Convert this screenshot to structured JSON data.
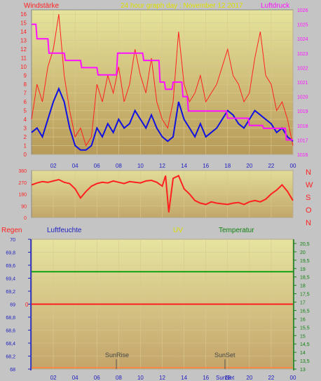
{
  "header": {
    "left_label": "Windstärke",
    "title": "24 hour graph day : November 12 2017",
    "right_label": "Luftdruck"
  },
  "labels": {
    "rain": "Regen",
    "humidity": "Luftfeuchte",
    "uv": "UV",
    "temperature": "Temperatur",
    "sunrise": "SunRise",
    "sunset": "SunSet",
    "sunset_short": "SunSet",
    "uv_zero": "0",
    "compass": [
      "N",
      "W",
      "S",
      "O",
      "N"
    ]
  },
  "colors": {
    "wind": "#ff2020",
    "wind_avg": "#1010e0",
    "pressure": "#ff10ff",
    "direction": "#ff2020",
    "humidity": "#10a010",
    "uv": "#ff2020",
    "title": "#e0e000",
    "left_axis": "#ff2020",
    "right_axis_top": "#ff10ff",
    "temp_axis": "#108010",
    "rain_axis": "#2020c0",
    "header_text_left": "#ff2020"
  },
  "chart_data": [
    {
      "type": "line",
      "name": "wind-pressure",
      "x_ticks": [
        "02",
        "04",
        "06",
        "08",
        "10",
        "12",
        "14",
        "16",
        "18",
        "20",
        "22",
        "00"
      ],
      "left_ticks": [
        "0",
        "1",
        "2",
        "3",
        "4",
        "5",
        "6",
        "7",
        "8",
        "9",
        "10",
        "11",
        "12",
        "13",
        "14",
        "15",
        "16"
      ],
      "right_ticks": [
        "1016",
        "1017",
        "1018",
        "1019",
        "1020",
        "1021",
        "1022",
        "1023",
        "1024",
        "1025",
        "1026"
      ],
      "ylim_left": [
        0,
        16.5
      ],
      "ylim_right": [
        1016,
        1026
      ],
      "series": [
        {
          "key": "gust",
          "x": [
            0,
            0.5,
            1,
            1.5,
            2,
            2.5,
            3,
            3.5,
            4,
            4.5,
            5,
            5.5,
            6,
            6.5,
            7,
            7.5,
            8,
            8.5,
            9,
            9.5,
            10,
            10.5,
            11,
            11.5,
            12,
            12.5,
            13,
            13.5,
            14,
            14.5,
            15,
            15.5,
            16,
            16.5,
            17,
            17.5,
            18,
            18.5,
            19,
            19.5,
            20,
            20.5,
            21,
            21.5,
            22,
            22.5,
            23,
            23.5,
            24
          ],
          "y": [
            4,
            8,
            6,
            10,
            12,
            16,
            9,
            5,
            2,
            3,
            1,
            2,
            8,
            6,
            9,
            7,
            10,
            6,
            8,
            12,
            9,
            7,
            11,
            6,
            4,
            3,
            6,
            14,
            8,
            6,
            7,
            9,
            6,
            7,
            8,
            10,
            12,
            9,
            8,
            6,
            7,
            11,
            14,
            9,
            8,
            5,
            6,
            4,
            1
          ]
        },
        {
          "key": "avg",
          "x": [
            0,
            0.5,
            1,
            1.5,
            2,
            2.5,
            3,
            3.5,
            4,
            4.5,
            5,
            5.5,
            6,
            6.5,
            7,
            7.5,
            8,
            8.5,
            9,
            9.5,
            10,
            10.5,
            11,
            11.5,
            12,
            12.5,
            13,
            13.5,
            14,
            14.5,
            15,
            15.5,
            16,
            16.5,
            17,
            17.5,
            18,
            18.5,
            19,
            19.5,
            20,
            20.5,
            21,
            21.5,
            22,
            22.5,
            23,
            23.5,
            24
          ],
          "y": [
            2.5,
            3,
            2,
            4,
            6,
            7.5,
            6,
            3,
            1,
            0.5,
            0.5,
            1,
            3,
            2,
            3.5,
            2.5,
            4,
            3,
            3.5,
            5,
            4,
            3,
            4.5,
            3,
            2,
            1.5,
            2,
            6,
            4,
            3,
            2,
            3.5,
            2,
            2.5,
            3,
            4,
            5,
            4.5,
            3.5,
            3,
            4,
            5,
            4.5,
            4,
            3.5,
            2.5,
            3,
            2,
            1.5
          ]
        },
        {
          "key": "pressure",
          "x": [
            0,
            0.4,
            0.5,
            1.5,
            1.6,
            3,
            3.1,
            4.5,
            4.6,
            6,
            6.1,
            7.8,
            7.9,
            10.2,
            10.3,
            11.7,
            11.8,
            12.2,
            12.3,
            12.9,
            13,
            13.8,
            13.9,
            14.3,
            14.4,
            17.9,
            18,
            19.9,
            20,
            21.2,
            21.3,
            23.3,
            23.4,
            24
          ],
          "y": [
            1025,
            1025,
            1024,
            1024,
            1023,
            1023,
            1022.5,
            1022.5,
            1022,
            1022,
            1021.5,
            1021.5,
            1023,
            1023,
            1022.5,
            1022.5,
            1021,
            1021,
            1020.5,
            1020.5,
            1021,
            1021,
            1020,
            1020,
            1019,
            1019,
            1018.5,
            1018.5,
            1018,
            1018,
            1017.8,
            1017.8,
            1017,
            1017
          ]
        }
      ]
    },
    {
      "type": "line",
      "name": "wind-direction",
      "y_ticks": [
        "360",
        "270",
        "180",
        "90",
        "0"
      ],
      "ylim": [
        0,
        360
      ],
      "x": [
        0,
        0.5,
        1,
        1.5,
        2,
        2.5,
        3,
        3.5,
        4,
        4.5,
        5,
        5.5,
        6,
        6.5,
        7,
        7.5,
        8,
        8.5,
        9,
        9.5,
        10,
        10.5,
        11,
        11.5,
        12,
        12.3,
        12.6,
        13,
        13.5,
        14,
        14.5,
        15,
        15.5,
        16,
        16.5,
        17,
        17.5,
        18,
        18.5,
        19,
        19.5,
        20,
        20.5,
        21,
        21.5,
        22,
        22.5,
        23,
        23.5,
        24
      ],
      "y": [
        250,
        265,
        275,
        270,
        280,
        290,
        270,
        260,
        220,
        150,
        200,
        240,
        260,
        270,
        265,
        280,
        270,
        260,
        275,
        270,
        265,
        280,
        285,
        270,
        240,
        320,
        40,
        300,
        320,
        220,
        180,
        130,
        110,
        100,
        120,
        110,
        105,
        100,
        110,
        115,
        100,
        120,
        130,
        120,
        140,
        180,
        210,
        250,
        200,
        130
      ]
    },
    {
      "type": "line",
      "name": "humidity-uv-temperature",
      "left_ticks": [
        "68",
        "68,2",
        "68,4",
        "68,6",
        "68,8",
        "69",
        "69,2",
        "69,4",
        "69,6",
        "69,8",
        "70"
      ],
      "right_ticks": [
        "13",
        "13,5",
        "14",
        "14,5",
        "15",
        "15,5",
        "16",
        "16,5",
        "17",
        "17,5",
        "18",
        "18,5",
        "19",
        "19,5",
        "20",
        "20,5"
      ],
      "ylim_left": [
        68,
        70
      ],
      "ylim_right": [
        13,
        20.75
      ],
      "series": [
        {
          "key": "humidity",
          "y_const": 69.5
        },
        {
          "key": "uv",
          "y_const": 69
        }
      ]
    }
  ]
}
